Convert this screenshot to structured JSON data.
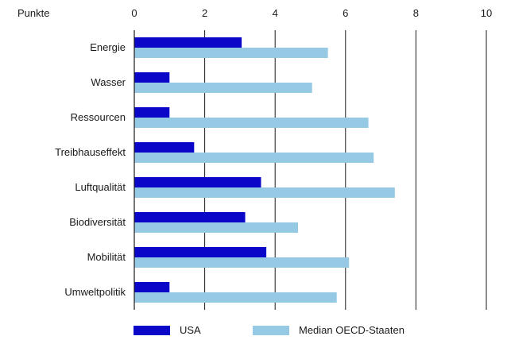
{
  "chart_data": {
    "type": "bar",
    "orientation": "horizontal",
    "title": "",
    "unit_label": "Punkte",
    "xlim": [
      0,
      10
    ],
    "x_ticks": [
      0,
      2,
      4,
      6,
      8,
      10
    ],
    "grid": "vertical",
    "legend_position": "bottom",
    "categories": [
      "Energie",
      "Wasser",
      "Ressourcen",
      "Treibhauseffekt",
      "Luftqualität",
      "Biodiversität",
      "Mobilität",
      "Umweltpolitik"
    ],
    "series": [
      {
        "name": "USA",
        "color": "#0a07c8",
        "values": [
          3.05,
          1.0,
          1.0,
          1.7,
          3.6,
          3.15,
          3.75,
          1.0
        ]
      },
      {
        "name": "Median OECD-Staaten",
        "color": "#96c9e4",
        "values": [
          5.5,
          5.05,
          6.65,
          6.8,
          7.4,
          4.65,
          6.1,
          5.75
        ]
      }
    ]
  }
}
